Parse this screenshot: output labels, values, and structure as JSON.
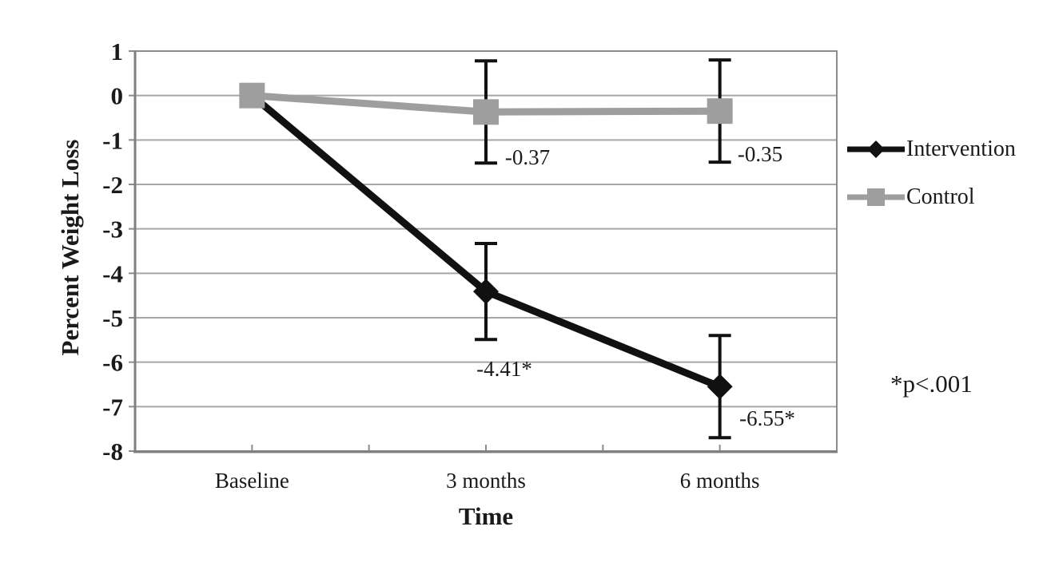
{
  "chart_data": {
    "type": "line",
    "title": "",
    "xlabel": "Time",
    "ylabel": "Percent Weight Loss",
    "categories": [
      "Baseline",
      "3 months",
      "6 months"
    ],
    "ylim": [
      -8,
      1
    ],
    "ytick_labels": [
      "1",
      "0",
      "-1",
      "-2",
      "-3",
      "-4",
      "-5",
      "-6",
      "-7",
      "-8"
    ],
    "grid": true,
    "legend_position": "right",
    "annotation": "*p<.001",
    "series": [
      {
        "name": "Intervention",
        "color": "#111111",
        "marker": "diamond",
        "values": [
          0,
          -4.41,
          -6.55
        ],
        "errors": [
          null,
          1.08,
          1.15
        ],
        "labels": [
          null,
          "-4.41*",
          "-6.55*"
        ]
      },
      {
        "name": "Control",
        "color": "#9e9e9e",
        "marker": "square",
        "values": [
          0,
          -0.37,
          -0.35
        ],
        "errors": [
          null,
          1.15,
          1.15
        ],
        "labels": [
          null,
          "-0.37",
          "-0.35"
        ]
      }
    ],
    "colors": {
      "gridline": "#a6a6a6",
      "axis": "#7f7f7f",
      "border": "#8c8c8c",
      "error_bar": "#111111",
      "text": "#1a1a1a"
    }
  }
}
